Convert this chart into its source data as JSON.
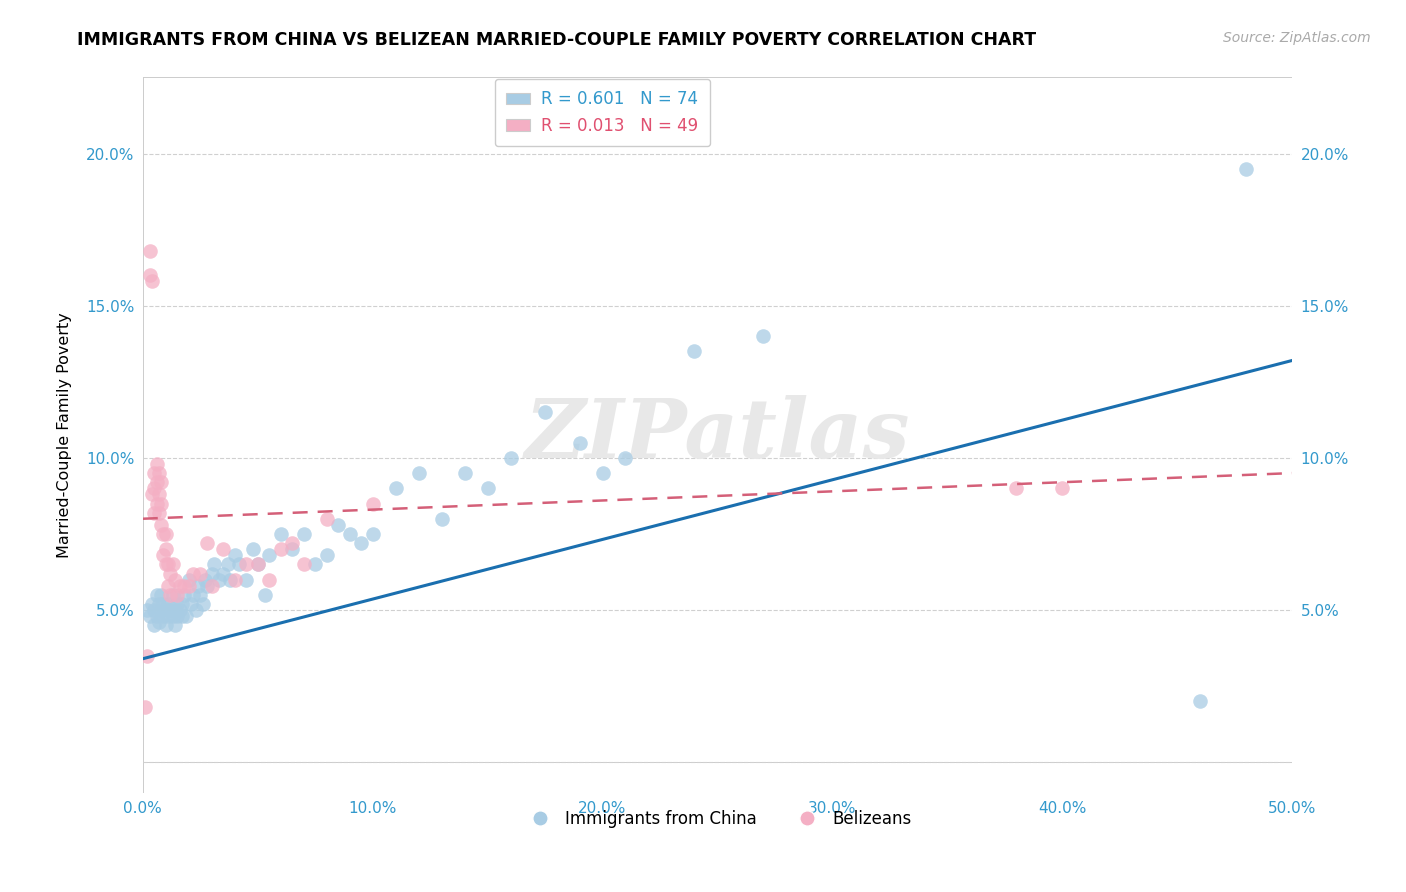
{
  "title": "IMMIGRANTS FROM CHINA VS BELIZEAN MARRIED-COUPLE FAMILY POVERTY CORRELATION CHART",
  "source": "Source: ZipAtlas.com",
  "ylabel": "Married-Couple Family Poverty",
  "xlim": [
    0,
    0.5
  ],
  "ylim": [
    -0.01,
    0.225
  ],
  "xticks": [
    0.0,
    0.1,
    0.2,
    0.3,
    0.4,
    0.5
  ],
  "xtick_labels": [
    "0.0%",
    "10.0%",
    "20.0%",
    "30.0%",
    "40.0%",
    "50.0%"
  ],
  "yticks": [
    0.0,
    0.05,
    0.1,
    0.15,
    0.2
  ],
  "ytick_labels": [
    "",
    "5.0%",
    "10.0%",
    "15.0%",
    "20.0%"
  ],
  "legend1_label": "R = 0.601   N = 74",
  "legend2_label": "R = 0.013   N = 49",
  "series1_label": "Immigrants from China",
  "series2_label": "Belizeans",
  "blue_color": "#a8cce4",
  "pink_color": "#f4afc4",
  "blue_line_color": "#1a6faf",
  "pink_line_color": "#d45f78",
  "watermark": "ZIPatlas",
  "blue_x": [
    0.002,
    0.003,
    0.004,
    0.005,
    0.005,
    0.006,
    0.006,
    0.007,
    0.007,
    0.008,
    0.008,
    0.009,
    0.009,
    0.01,
    0.01,
    0.011,
    0.011,
    0.012,
    0.013,
    0.013,
    0.014,
    0.014,
    0.015,
    0.015,
    0.016,
    0.017,
    0.017,
    0.018,
    0.019,
    0.02,
    0.021,
    0.022,
    0.023,
    0.024,
    0.025,
    0.026,
    0.027,
    0.028,
    0.03,
    0.031,
    0.033,
    0.035,
    0.037,
    0.038,
    0.04,
    0.042,
    0.045,
    0.048,
    0.05,
    0.053,
    0.055,
    0.06,
    0.065,
    0.07,
    0.075,
    0.08,
    0.085,
    0.09,
    0.095,
    0.1,
    0.11,
    0.12,
    0.13,
    0.14,
    0.15,
    0.16,
    0.175,
    0.19,
    0.2,
    0.21,
    0.24,
    0.27,
    0.46,
    0.48
  ],
  "blue_y": [
    0.05,
    0.048,
    0.052,
    0.05,
    0.045,
    0.048,
    0.055,
    0.046,
    0.052,
    0.05,
    0.055,
    0.048,
    0.052,
    0.045,
    0.05,
    0.048,
    0.052,
    0.05,
    0.048,
    0.055,
    0.05,
    0.045,
    0.048,
    0.052,
    0.05,
    0.048,
    0.052,
    0.055,
    0.048,
    0.06,
    0.052,
    0.055,
    0.05,
    0.058,
    0.055,
    0.052,
    0.06,
    0.058,
    0.062,
    0.065,
    0.06,
    0.062,
    0.065,
    0.06,
    0.068,
    0.065,
    0.06,
    0.07,
    0.065,
    0.055,
    0.068,
    0.075,
    0.07,
    0.075,
    0.065,
    0.068,
    0.078,
    0.075,
    0.072,
    0.075,
    0.09,
    0.095,
    0.08,
    0.095,
    0.09,
    0.1,
    0.115,
    0.105,
    0.095,
    0.1,
    0.135,
    0.14,
    0.02,
    0.195
  ],
  "pink_x": [
    0.001,
    0.002,
    0.003,
    0.003,
    0.004,
    0.004,
    0.005,
    0.005,
    0.005,
    0.006,
    0.006,
    0.006,
    0.007,
    0.007,
    0.007,
    0.008,
    0.008,
    0.008,
    0.009,
    0.009,
    0.01,
    0.01,
    0.01,
    0.011,
    0.011,
    0.012,
    0.012,
    0.013,
    0.014,
    0.015,
    0.016,
    0.018,
    0.02,
    0.022,
    0.025,
    0.028,
    0.03,
    0.035,
    0.04,
    0.045,
    0.05,
    0.055,
    0.06,
    0.065,
    0.07,
    0.08,
    0.1,
    0.38,
    0.4
  ],
  "pink_y": [
    0.018,
    0.035,
    0.16,
    0.168,
    0.158,
    0.088,
    0.082,
    0.09,
    0.095,
    0.085,
    0.092,
    0.098,
    0.082,
    0.088,
    0.095,
    0.078,
    0.085,
    0.092,
    0.068,
    0.075,
    0.065,
    0.07,
    0.075,
    0.058,
    0.065,
    0.055,
    0.062,
    0.065,
    0.06,
    0.055,
    0.058,
    0.058,
    0.058,
    0.062,
    0.062,
    0.072,
    0.058,
    0.07,
    0.06,
    0.065,
    0.065,
    0.06,
    0.07,
    0.072,
    0.065,
    0.08,
    0.085,
    0.09,
    0.09
  ],
  "blue_trendline_x": [
    0.0,
    0.5
  ],
  "blue_trendline_y": [
    0.034,
    0.132
  ],
  "pink_trendline_x": [
    0.0,
    0.5
  ],
  "pink_trendline_y": [
    0.08,
    0.095
  ]
}
